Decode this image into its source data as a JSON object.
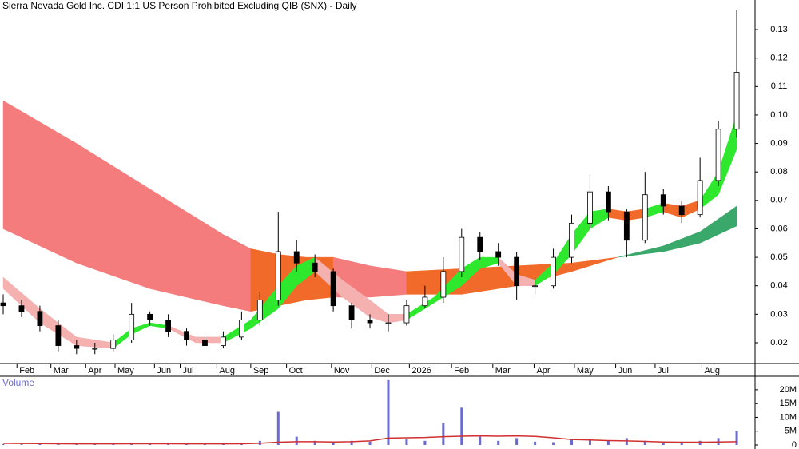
{
  "chart_data": {
    "type": "candlestick",
    "title": "Sierra Nevada Gold Inc. CDI 1:1 US Person Prohibited Excluding QIB (SNX) - Daily",
    "x": [
      0,
      2,
      4,
      6,
      8,
      10,
      12,
      14,
      16,
      18,
      20,
      22,
      24,
      26,
      28,
      30,
      32,
      34,
      36,
      38,
      40,
      42,
      44,
      46,
      48,
      50,
      52,
      54,
      56,
      58,
      60,
      62,
      64,
      66,
      68,
      70,
      72,
      74,
      76,
      78,
      80
    ],
    "open": [
      0.034,
      0.033,
      0.031,
      0.026,
      0.019,
      0.018,
      0.018,
      0.021,
      0.03,
      0.028,
      0.024,
      0.021,
      0.019,
      0.022,
      0.028,
      0.035,
      0.052,
      0.048,
      0.045,
      0.033,
      0.028,
      0.027,
      0.027,
      0.033,
      0.036,
      0.045,
      0.057,
      0.052,
      0.05,
      0.04,
      0.04,
      0.05,
      0.062,
      0.073,
      0.066,
      0.056,
      0.072,
      0.068,
      0.065,
      0.077,
      0.095
    ],
    "high": [
      0.037,
      0.035,
      0.033,
      0.028,
      0.021,
      0.02,
      0.023,
      0.034,
      0.031,
      0.03,
      0.025,
      0.022,
      0.024,
      0.031,
      0.038,
      0.066,
      0.056,
      0.051,
      0.046,
      0.034,
      0.03,
      0.03,
      0.035,
      0.04,
      0.05,
      0.06,
      0.059,
      0.055,
      0.052,
      0.043,
      0.053,
      0.065,
      0.079,
      0.075,
      0.067,
      0.08,
      0.074,
      0.07,
      0.085,
      0.098,
      0.137
    ],
    "low": [
      0.03,
      0.029,
      0.024,
      0.017,
      0.016,
      0.016,
      0.017,
      0.02,
      0.026,
      0.022,
      0.019,
      0.018,
      0.018,
      0.021,
      0.026,
      0.033,
      0.045,
      0.043,
      0.031,
      0.025,
      0.025,
      0.024,
      0.026,
      0.032,
      0.034,
      0.043,
      0.049,
      0.047,
      0.035,
      0.037,
      0.039,
      0.048,
      0.06,
      0.063,
      0.05,
      0.055,
      0.065,
      0.062,
      0.064,
      0.075,
      0.092
    ],
    "close": [
      0.033,
      0.031,
      0.026,
      0.019,
      0.018,
      0.018,
      0.021,
      0.03,
      0.028,
      0.024,
      0.021,
      0.019,
      0.022,
      0.028,
      0.035,
      0.052,
      0.048,
      0.045,
      0.033,
      0.028,
      0.027,
      0.027,
      0.033,
      0.036,
      0.045,
      0.057,
      0.052,
      0.05,
      0.04,
      0.04,
      0.05,
      0.062,
      0.073,
      0.066,
      0.056,
      0.072,
      0.068,
      0.065,
      0.077,
      0.095,
      0.115
    ],
    "up_color": "#ffffff",
    "down_color": "#000000",
    "xlim": [
      -0.35,
      82
    ],
    "xticks": [
      {
        "value": 1.5,
        "label": "Feb"
      },
      {
        "value": 5.2,
        "label": "Mar"
      },
      {
        "value": 9,
        "label": "Apr"
      },
      {
        "value": 12.2,
        "label": "May"
      },
      {
        "value": 16.5,
        "label": "Jun"
      },
      {
        "value": 19.3,
        "label": "Jul"
      },
      {
        "value": 23.3,
        "label": "Aug"
      },
      {
        "value": 27,
        "label": "Sep"
      },
      {
        "value": 30.9,
        "label": "Oct"
      },
      {
        "value": 35.8,
        "label": "Nov"
      },
      {
        "value": 40.2,
        "label": "Dec"
      },
      {
        "value": 44.3,
        "label": "2026"
      },
      {
        "value": 48.9,
        "label": "Feb"
      },
      {
        "value": 53.4,
        "label": "Mar"
      },
      {
        "value": 57.9,
        "label": "Apr"
      },
      {
        "value": 62.3,
        "label": "May"
      },
      {
        "value": 66.8,
        "label": "Jun"
      },
      {
        "value": 71.1,
        "label": "Jul"
      },
      {
        "value": 76.2,
        "label": "Aug"
      }
    ],
    "ylim": [
      0.0127,
      0.1404
    ],
    "yticks": [
      0.02,
      0.03,
      0.04,
      0.05,
      0.06,
      0.07,
      0.08,
      0.09,
      {
        "value": 0.1,
        "label": "0.10"
      },
      0.11,
      0.12,
      0.13
    ],
    "bands": [
      {
        "color": "#f47c7c",
        "x": [
          0,
          8,
          16,
          24,
          27
        ],
        "upper": [
          0.105,
          0.09,
          0.074,
          0.058,
          0.053
        ],
        "lower": [
          0.06,
          0.048,
          0.039,
          0.033,
          0.031
        ]
      },
      {
        "color": "#f26a2a",
        "x": [
          27,
          30,
          33,
          36
        ],
        "upper": [
          0.053,
          0.051,
          0.05,
          0.05
        ],
        "lower": [
          0.031,
          0.033,
          0.035,
          0.036
        ]
      },
      {
        "color": "#f47c7c",
        "x": [
          36,
          40,
          44
        ],
        "upper": [
          0.05,
          0.047,
          0.045
        ],
        "lower": [
          0.036,
          0.036,
          0.037
        ]
      },
      {
        "color": "#f26a2a",
        "x": [
          44,
          50,
          56,
          62,
          67
        ],
        "upper": [
          0.045,
          0.046,
          0.047,
          0.048,
          0.05
        ],
        "lower": [
          0.037,
          0.037,
          0.04,
          0.045,
          0.05
        ]
      },
      {
        "color": "#3aa86a",
        "x": [
          67,
          72,
          76,
          80
        ],
        "upper": [
          0.05,
          0.054,
          0.059,
          0.068
        ],
        "lower": [
          0.05,
          0.052,
          0.055,
          0.061
        ]
      },
      {
        "color": "#f5b0b0",
        "x": [
          0,
          4,
          8,
          12
        ],
        "upper": [
          0.043,
          0.032,
          0.022,
          0.02
        ],
        "lower": [
          0.039,
          0.027,
          0.019,
          0.018
        ]
      },
      {
        "color": "#2ee82e",
        "x": [
          12,
          14,
          16,
          18
        ],
        "upper": [
          0.02,
          0.025,
          0.027,
          0.026
        ],
        "lower": [
          0.018,
          0.023,
          0.026,
          0.025
        ]
      },
      {
        "color": "#f5b0b0",
        "x": [
          18,
          21,
          24
        ],
        "upper": [
          0.026,
          0.022,
          0.022
        ],
        "lower": [
          0.025,
          0.02,
          0.02
        ]
      },
      {
        "color": "#2ee82e",
        "x": [
          24,
          27,
          30,
          32,
          34
        ],
        "upper": [
          0.022,
          0.028,
          0.04,
          0.047,
          0.05
        ],
        "lower": [
          0.02,
          0.025,
          0.032,
          0.04,
          0.045
        ]
      },
      {
        "color": "#f5b0b0",
        "x": [
          34,
          37,
          40,
          42,
          44
        ],
        "upper": [
          0.05,
          0.042,
          0.035,
          0.03,
          0.03
        ],
        "lower": [
          0.045,
          0.036,
          0.029,
          0.027,
          0.028
        ]
      },
      {
        "color": "#2ee82e",
        "x": [
          44,
          47,
          50,
          52,
          54
        ],
        "upper": [
          0.03,
          0.036,
          0.046,
          0.05,
          0.05
        ],
        "lower": [
          0.028,
          0.034,
          0.04,
          0.046,
          0.048
        ]
      },
      {
        "color": "#f5b0b0",
        "x": [
          54,
          56,
          58
        ],
        "upper": [
          0.05,
          0.044,
          0.042
        ],
        "lower": [
          0.048,
          0.04,
          0.04
        ]
      },
      {
        "color": "#2ee82e",
        "x": [
          58,
          60,
          62,
          64,
          66
        ],
        "upper": [
          0.042,
          0.048,
          0.058,
          0.066,
          0.067
        ],
        "lower": [
          0.04,
          0.044,
          0.051,
          0.06,
          0.064
        ]
      },
      {
        "color": "#f26a2a",
        "x": [
          66,
          68,
          70
        ],
        "upper": [
          0.067,
          0.066,
          0.067
        ],
        "lower": [
          0.064,
          0.063,
          0.064
        ]
      },
      {
        "color": "#2ee82e",
        "x": [
          70,
          72
        ],
        "upper": [
          0.067,
          0.069
        ],
        "lower": [
          0.064,
          0.066
        ]
      },
      {
        "color": "#f26a2a",
        "x": [
          72,
          74,
          76
        ],
        "upper": [
          0.069,
          0.068,
          0.07
        ],
        "lower": [
          0.066,
          0.064,
          0.067
        ]
      },
      {
        "color": "#2ee82e",
        "x": [
          76,
          78,
          80
        ],
        "upper": [
          0.07,
          0.08,
          0.1
        ],
        "lower": [
          0.067,
          0.072,
          0.088
        ]
      }
    ],
    "volume": {
      "title": "Volume",
      "color": "#6a6ad0",
      "ma_color": "#d03030",
      "values": [
        300000,
        250000,
        400000,
        300000,
        200000,
        250000,
        300000,
        600000,
        400000,
        300000,
        250000,
        300000,
        400000,
        500000,
        1500000,
        12000000,
        3000000,
        1500000,
        800000,
        1500000,
        1200000,
        23500000,
        2000000,
        1500000,
        8000000,
        13500000,
        3000000,
        1500000,
        2500000,
        1200000,
        1000000,
        2000000,
        2000000,
        1500000,
        2500000,
        1500000,
        1000000,
        1200000,
        1500000,
        2500000,
        5000000
      ],
      "ma": [
        600000,
        550000,
        500000,
        450000,
        400000,
        400000,
        400000,
        450000,
        450000,
        450000,
        400000,
        400000,
        400000,
        450000,
        600000,
        1000000,
        1200000,
        1200000,
        1100000,
        1200000,
        1500000,
        2500000,
        2600000,
        2700000,
        3000000,
        3200000,
        3300000,
        3200000,
        3300000,
        3100000,
        2600000,
        2000000,
        1800000,
        1600000,
        1500000,
        1300000,
        1100000,
        1000000,
        1000000,
        1100000,
        1200000
      ],
      "ylim": [
        0,
        24600000
      ],
      "yticks": [
        0,
        {
          "value": 5000000,
          "label": "5M"
        },
        {
          "value": 10000000,
          "label": "10M"
        },
        {
          "value": 15000000,
          "label": "15M"
        },
        {
          "value": 20000000,
          "label": "20M"
        }
      ]
    }
  }
}
